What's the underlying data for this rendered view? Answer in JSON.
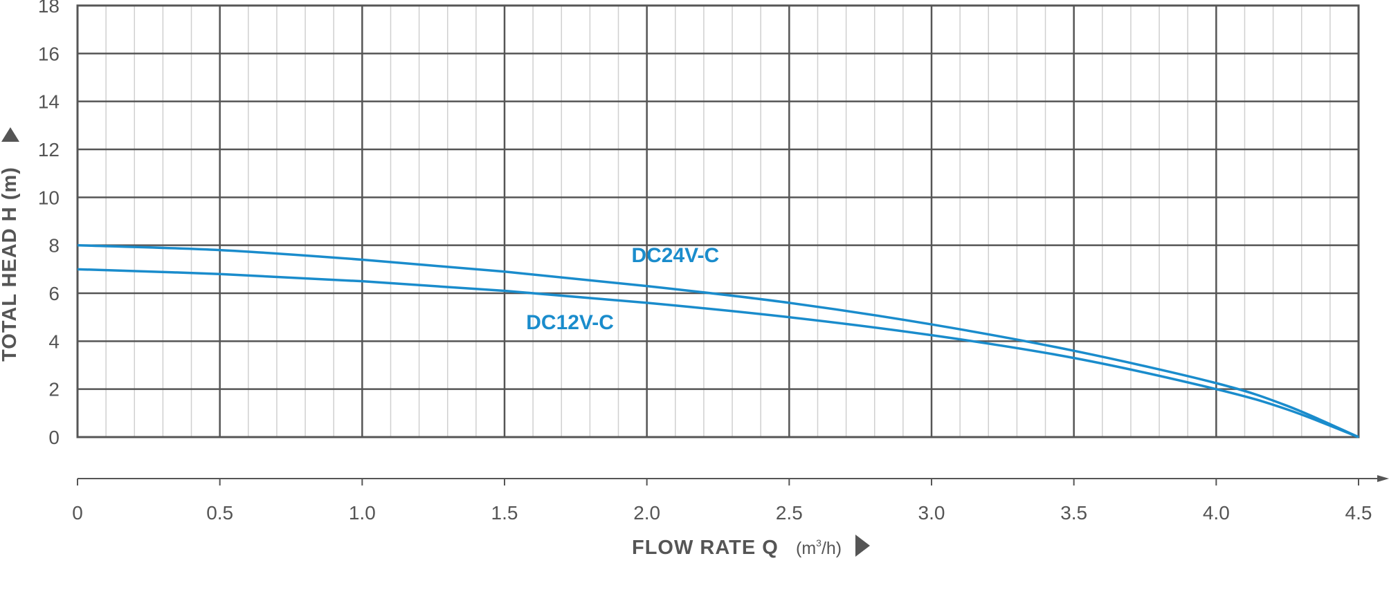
{
  "chart_data": {
    "type": "line",
    "title": "",
    "xlabel": "FLOW RATE Q",
    "xunit_prefix": "(m",
    "xunit_sup": "3",
    "xunit_suffix": "/h)",
    "ylabel": "TOTAL HEAD H (m)",
    "xlim": [
      0,
      4.5
    ],
    "ylim": [
      0,
      18
    ],
    "xticks": [
      {
        "value": 0,
        "label": "0"
      },
      {
        "value": 0.5,
        "label": "0.5"
      },
      {
        "value": 1.0,
        "label": "1.0"
      },
      {
        "value": 1.5,
        "label": "1.5"
      },
      {
        "value": 2.0,
        "label": "2.0"
      },
      {
        "value": 2.5,
        "label": "2.5"
      },
      {
        "value": 3.0,
        "label": "3.0"
      },
      {
        "value": 3.5,
        "label": "3.5"
      },
      {
        "value": 4.0,
        "label": "4.0"
      },
      {
        "value": 4.5,
        "label": "4.5"
      }
    ],
    "yticks": [
      {
        "value": 0,
        "label": "0"
      },
      {
        "value": 2,
        "label": "2"
      },
      {
        "value": 4,
        "label": "4"
      },
      {
        "value": 6,
        "label": "6"
      },
      {
        "value": 8,
        "label": "8"
      },
      {
        "value": 10,
        "label": "10"
      },
      {
        "value": 12,
        "label": "12"
      },
      {
        "value": 14,
        "label": "14"
      },
      {
        "value": 16,
        "label": "16"
      },
      {
        "value": 18,
        "label": "18"
      }
    ],
    "grid": true,
    "minor_x_step": 0.1,
    "series": [
      {
        "name": "DC24V-C",
        "color": "#1a8ccc",
        "label_at": {
          "x": 2.1,
          "y": 7.3
        },
        "x": [
          0,
          0.5,
          1.0,
          1.5,
          2.0,
          2.5,
          3.0,
          3.5,
          4.0,
          4.25,
          4.5
        ],
        "y": [
          8.0,
          7.8,
          7.4,
          6.9,
          6.3,
          5.6,
          4.7,
          3.6,
          2.25,
          1.3,
          0.0
        ]
      },
      {
        "name": "DC12V-C",
        "color": "#1a8ccc",
        "label_at": {
          "x": 1.73,
          "y": 4.5
        },
        "x": [
          0,
          0.5,
          1.0,
          1.5,
          2.0,
          2.5,
          3.0,
          3.5,
          4.0,
          4.25,
          4.5
        ],
        "y": [
          7.0,
          6.8,
          6.5,
          6.1,
          5.6,
          5.0,
          4.25,
          3.3,
          2.0,
          1.15,
          0.0
        ]
      }
    ],
    "colors": {
      "grid_major": "#555555",
      "grid_minor": "#cfcfcf",
      "text": "#555555"
    }
  }
}
